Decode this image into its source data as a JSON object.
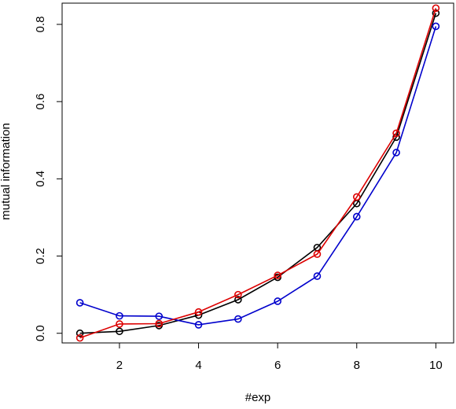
{
  "chart_data": {
    "type": "line",
    "title": "",
    "xlabel": "#exp",
    "ylabel": "mutual information",
    "x": [
      1,
      2,
      3,
      4,
      5,
      6,
      7,
      8,
      9,
      10
    ],
    "xlim": [
      0.55,
      10.45
    ],
    "ylim": [
      -0.025,
      0.855
    ],
    "xticks": [
      2,
      4,
      6,
      8,
      10
    ],
    "yticks": [
      0.0,
      0.2,
      0.4,
      0.6,
      0.8
    ],
    "xtick_labels": [
      "2",
      "4",
      "6",
      "8",
      "10"
    ],
    "ytick_labels": [
      "0.0",
      "0.2",
      "0.4",
      "0.6",
      "0.8"
    ],
    "grid": false,
    "legend": "none",
    "marker": "open-circle",
    "series": [
      {
        "color": "#000000",
        "values": [
          0.0,
          0.005,
          0.02,
          0.047,
          0.087,
          0.145,
          0.222,
          0.336,
          0.508,
          0.829
        ]
      },
      {
        "color": "#0000cc",
        "values": [
          0.079,
          0.045,
          0.044,
          0.022,
          0.037,
          0.083,
          0.148,
          0.302,
          0.468,
          0.795
        ]
      },
      {
        "color": "#dd0000",
        "values": [
          -0.012,
          0.024,
          0.025,
          0.055,
          0.1,
          0.15,
          0.205,
          0.353,
          0.518,
          0.842
        ]
      }
    ]
  }
}
